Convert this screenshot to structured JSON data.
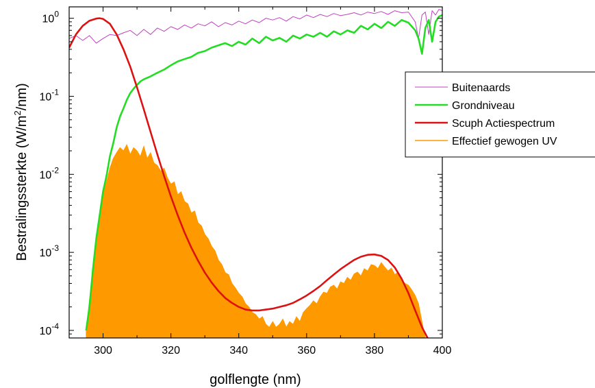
{
  "chart_data": {
    "type": "area",
    "xlabel": "golflengte (nm)",
    "ylabel": {
      "prefix": "Bestralingssterkte (W/m",
      "superscript": "2",
      "suffix": "/nm)"
    },
    "xlim": [
      290,
      400
    ],
    "ylim": [
      8e-05,
      1.4
    ],
    "yscale": "log",
    "xticks": [
      300,
      320,
      340,
      360,
      380,
      400
    ],
    "xtick_labels": [
      "300",
      "320",
      "340",
      "360",
      "380",
      "400"
    ],
    "yticks": [
      {
        "value": 1,
        "base": "10",
        "exp": "0"
      },
      {
        "value": 0.1,
        "base": "10",
        "exp": "-1"
      },
      {
        "value": 0.01,
        "base": "10",
        "exp": "-2"
      },
      {
        "value": 0.001,
        "base": "10",
        "exp": "-3"
      },
      {
        "value": 0.0001,
        "base": "10",
        "exp": "-4"
      }
    ],
    "grid": false,
    "legend_position": "right",
    "series": [
      {
        "name": "Buitenaards",
        "kind": "line",
        "color": "#c040c0",
        "x": [
          290,
          292,
          294,
          296,
          298,
          300,
          302,
          304,
          306,
          308,
          310,
          312,
          314,
          316,
          318,
          320,
          322,
          324,
          326,
          328,
          330,
          332,
          334,
          336,
          338,
          340,
          342,
          344,
          346,
          348,
          350,
          352,
          354,
          356,
          358,
          360,
          362,
          364,
          366,
          368,
          370,
          372,
          374,
          376,
          378,
          380,
          382,
          384,
          386,
          388,
          390,
          392,
          393,
          394,
          395,
          396,
          397,
          398,
          399,
          400
        ],
        "y": [
          0.55,
          0.6,
          0.52,
          0.6,
          0.48,
          0.55,
          0.62,
          0.6,
          0.65,
          0.7,
          0.6,
          0.72,
          0.62,
          0.75,
          0.68,
          0.78,
          0.72,
          0.82,
          0.75,
          0.85,
          0.8,
          0.9,
          0.78,
          0.88,
          0.82,
          0.92,
          0.85,
          0.95,
          0.88,
          1.0,
          0.95,
          1.02,
          0.92,
          1.05,
          0.98,
          1.1,
          1.02,
          1.12,
          1.05,
          1.15,
          1.08,
          1.12,
          1.18,
          1.1,
          1.2,
          1.15,
          1.22,
          1.12,
          1.25,
          1.18,
          1.2,
          0.9,
          0.55,
          1.1,
          1.2,
          0.62,
          1.25,
          1.1,
          1.3,
          1.25
        ]
      },
      {
        "name": "Grondniveau",
        "kind": "line",
        "color": "#22dd22",
        "x": [
          295,
          296,
          297,
          298,
          299,
          300,
          301,
          302,
          303,
          304,
          305,
          306,
          307,
          308,
          309,
          310,
          311,
          312,
          314,
          316,
          318,
          320,
          322,
          324,
          326,
          328,
          330,
          332,
          334,
          336,
          338,
          340,
          342,
          344,
          346,
          348,
          350,
          352,
          354,
          356,
          358,
          360,
          362,
          364,
          366,
          368,
          370,
          372,
          374,
          376,
          378,
          380,
          382,
          384,
          386,
          388,
          390,
          392,
          393,
          394,
          395,
          396,
          397,
          398,
          399,
          400
        ],
        "y": [
          0.0001,
          0.0002,
          0.0006,
          0.0015,
          0.003,
          0.006,
          0.0095,
          0.017,
          0.025,
          0.04,
          0.055,
          0.07,
          0.09,
          0.11,
          0.125,
          0.14,
          0.155,
          0.165,
          0.18,
          0.2,
          0.22,
          0.25,
          0.28,
          0.3,
          0.32,
          0.36,
          0.38,
          0.42,
          0.45,
          0.48,
          0.44,
          0.5,
          0.46,
          0.55,
          0.48,
          0.58,
          0.52,
          0.56,
          0.5,
          0.6,
          0.55,
          0.62,
          0.58,
          0.65,
          0.58,
          0.68,
          0.62,
          0.7,
          0.65,
          0.8,
          0.72,
          0.85,
          0.75,
          0.9,
          0.8,
          0.95,
          0.88,
          0.7,
          0.55,
          0.35,
          0.75,
          0.95,
          0.5,
          0.9,
          1.05,
          1.1
        ]
      },
      {
        "name": "Scuph Actiespectrum",
        "kind": "line",
        "color": "#dd1111",
        "x": [
          290,
          292,
          294,
          296,
          298,
          299,
          300,
          302,
          304,
          306,
          308,
          310,
          312,
          314,
          316,
          318,
          320,
          322,
          324,
          326,
          328,
          330,
          332,
          334,
          336,
          338,
          340,
          342,
          344,
          346,
          348,
          350,
          352,
          354,
          356,
          358,
          360,
          362,
          364,
          366,
          368,
          370,
          372,
          374,
          376,
          378,
          380,
          382,
          384,
          386,
          388,
          390,
          392,
          394,
          396
        ],
        "y": [
          0.42,
          0.62,
          0.8,
          0.93,
          0.99,
          1.0,
          0.98,
          0.85,
          0.62,
          0.4,
          0.24,
          0.13,
          0.068,
          0.035,
          0.018,
          0.0095,
          0.0052,
          0.003,
          0.0018,
          0.00115,
          0.00078,
          0.00055,
          0.00041,
          0.00032,
          0.00026,
          0.000225,
          0.0002,
          0.000185,
          0.00018,
          0.00018,
          0.000185,
          0.00019,
          0.0002,
          0.00021,
          0.000225,
          0.00025,
          0.00028,
          0.00032,
          0.00037,
          0.00044,
          0.00052,
          0.00061,
          0.0007,
          0.0008,
          0.00088,
          0.00093,
          0.00094,
          0.0009,
          0.0008,
          0.00064,
          0.00046,
          0.0003,
          0.00018,
          0.00011,
          7.5e-05
        ]
      },
      {
        "name": "Effectief gewogen UV",
        "kind": "area",
        "color": "#ff9900",
        "x": [
          295,
          296,
          297,
          298,
          299,
          300,
          301,
          302,
          303,
          304,
          305,
          306,
          307,
          308,
          309,
          310,
          311,
          312,
          313,
          314,
          315,
          316,
          317,
          318,
          319,
          320,
          321,
          322,
          323,
          324,
          325,
          326,
          327,
          328,
          329,
          330,
          331,
          332,
          333,
          334,
          335,
          336,
          337,
          338,
          339,
          340,
          341,
          342,
          343,
          344,
          345,
          346,
          347,
          348,
          349,
          350,
          351,
          352,
          353,
          354,
          355,
          356,
          357,
          358,
          359,
          360,
          361,
          362,
          363,
          364,
          365,
          366,
          367,
          368,
          369,
          370,
          371,
          372,
          373,
          374,
          375,
          376,
          377,
          378,
          379,
          380,
          381,
          382,
          383,
          384,
          385,
          386,
          387,
          388,
          389,
          390,
          391,
          392,
          393,
          394,
          395,
          396
        ],
        "y": [
          0.0001,
          0.00025,
          0.0006,
          0.0015,
          0.003,
          0.0055,
          0.008,
          0.012,
          0.016,
          0.019,
          0.022,
          0.02,
          0.024,
          0.018,
          0.022,
          0.02,
          0.017,
          0.023,
          0.016,
          0.019,
          0.014,
          0.013,
          0.011,
          0.012,
          0.009,
          0.0075,
          0.008,
          0.0055,
          0.006,
          0.0045,
          0.0042,
          0.0032,
          0.0034,
          0.0024,
          0.0022,
          0.0017,
          0.0015,
          0.0012,
          0.00105,
          0.0008,
          0.0007,
          0.00055,
          0.00052,
          0.0004,
          0.00035,
          0.0003,
          0.00027,
          0.00022,
          0.0002,
          0.00017,
          0.00016,
          0.00014,
          0.00015,
          0.00012,
          0.00011,
          0.00013,
          0.00011,
          0.00012,
          0.00014,
          0.00011,
          0.00013,
          0.00012,
          0.00015,
          0.00013,
          0.00017,
          0.00019,
          0.00021,
          0.00024,
          0.00022,
          0.00027,
          0.00031,
          0.0003,
          0.00036,
          0.00038,
          0.00034,
          0.00042,
          0.0004,
          0.00048,
          0.00044,
          0.00053,
          0.00056,
          0.0005,
          0.00062,
          0.00058,
          0.0007,
          0.00068,
          0.00062,
          0.00074,
          0.00065,
          0.00058,
          0.00063,
          0.00052,
          0.00056,
          0.00045,
          0.0004,
          0.00038,
          0.00033,
          0.00028,
          0.00022,
          0.00013,
          8e-05,
          8e-05
        ]
      }
    ]
  }
}
